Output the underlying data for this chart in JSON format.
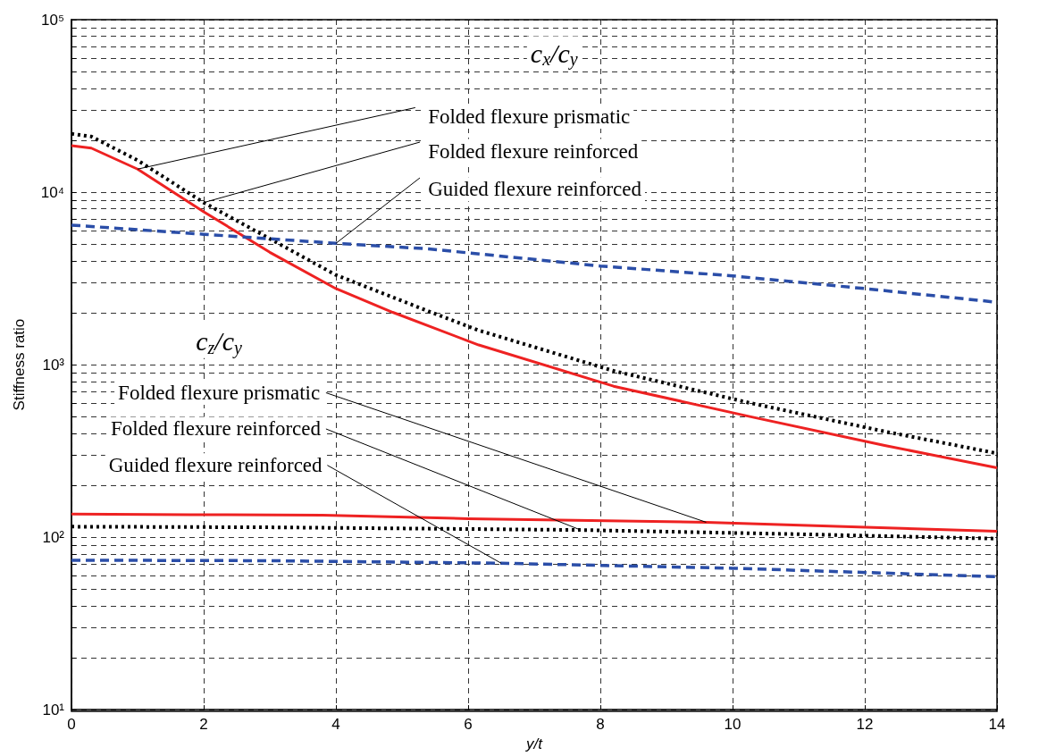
{
  "chart_data": {
    "type": "line",
    "xlabel": "y/t",
    "ylabel": "Stiffness ratio",
    "log": "y",
    "grid": true,
    "marker": "none",
    "xlim": [
      0,
      14
    ],
    "xticks": [
      0,
      2,
      4,
      6,
      8,
      10,
      12,
      14
    ],
    "ylim": [
      10,
      100000
    ],
    "yticks": [
      {
        "value": 10,
        "label": "10¹"
      },
      {
        "value": 100,
        "label": "10²"
      },
      {
        "value": 1000,
        "label": "10³"
      },
      {
        "value": 10000,
        "label": "10⁴"
      },
      {
        "value": 100000,
        "label": "10⁵"
      }
    ],
    "series": [
      {
        "color": "#ee2222",
        "line_style": "solid",
        "x": [
          0,
          0.3,
          1,
          2,
          3,
          4,
          4.86,
          6.16,
          8.2,
          10.26,
          12.3,
          14
        ],
        "values": [
          18600,
          18000,
          13600,
          7700,
          4480,
          2760,
          2010,
          1300,
          750,
          500,
          340,
          252
        ]
      },
      {
        "color": "#000000",
        "line_style": "dotted",
        "x": [
          0,
          0.3,
          1,
          2,
          3,
          4,
          5.4,
          6.16,
          8.2,
          10.26,
          12.3,
          14
        ],
        "values": [
          21800,
          21000,
          15300,
          8700,
          5370,
          3310,
          2040,
          1580,
          920,
          600,
          410,
          306
        ]
      },
      {
        "color": "#2b4ea8",
        "line_style": "dashed",
        "x": [
          0,
          2,
          4,
          5.4,
          8,
          10,
          12,
          14
        ],
        "values": [
          6440,
          5700,
          5050,
          4690,
          3730,
          3270,
          2760,
          2300
        ]
      },
      {
        "color": "#ee2222",
        "line_style": "solid",
        "x": [
          0,
          1.8,
          3.8,
          6,
          9.6,
          14
        ],
        "values": [
          136,
          135,
          134,
          128,
          122,
          108
        ]
      },
      {
        "color": "#000000",
        "line_style": "dotted",
        "x": [
          0,
          3,
          7.7,
          11,
          14
        ],
        "values": [
          115,
          114,
          110,
          104,
          98
        ]
      },
      {
        "color": "#2b4ea8",
        "line_style": "dashed",
        "x": [
          0,
          3,
          6.5,
          10,
          14
        ],
        "values": [
          73.5,
          73,
          70.6,
          66,
          59
        ]
      }
    ],
    "annotations": [
      "c$_{x}$/c$_{y}$",
      {
        "text": "Folded flexure prismatic",
        "x": 1,
        "y": 13600
      },
      {
        "text": "Folded flexure reinforced",
        "x": 2,
        "y": 8700
      },
      {
        "text": "Guided flexure reinforced",
        "x": 4,
        "y": 5050
      },
      "c$_{z}$/c$_{y}$",
      {
        "text": "Folded flexure prismatic",
        "x": 9.6,
        "y": 122
      },
      {
        "text": "Folded flexure reinforced",
        "x": 7.7,
        "y": 110
      },
      {
        "text": "Guided flexure reinforced",
        "x": 6.5,
        "y": 70.6
      }
    ]
  }
}
